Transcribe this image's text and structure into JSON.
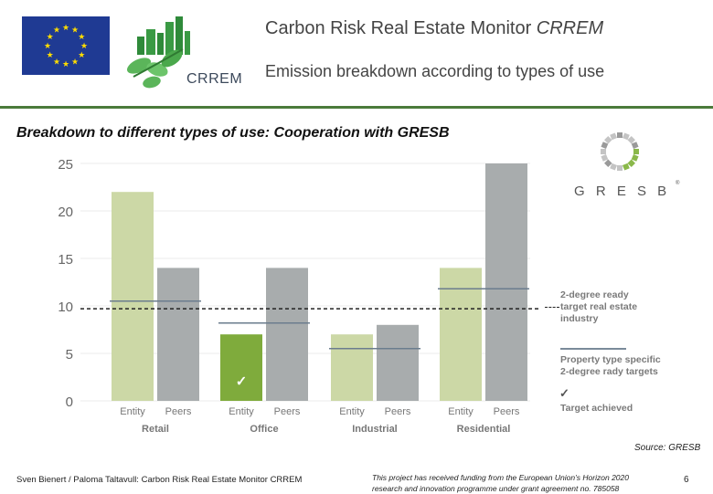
{
  "header": {
    "title_main": "Carbon Risk Real Estate Monitor ",
    "title_italic": "CRREM",
    "subtitle": "Emission breakdown according to types of use",
    "logo_text": "CRREM"
  },
  "slide_title": "Breakdown to different types of use: Cooperation with GRESB",
  "gresb": {
    "logo_text": "G R E S B",
    "mark": "®"
  },
  "chart_data": {
    "type": "bar",
    "title": "",
    "xlabel": "",
    "ylabel": "",
    "ylim": [
      0,
      25
    ],
    "yticks": [
      0,
      5,
      10,
      15,
      20,
      25
    ],
    "grid": true,
    "legend_placement": "right",
    "groups": [
      {
        "name": "Retail",
        "bars": [
          {
            "label": "Entity",
            "value": 22,
            "kind": "entity"
          },
          {
            "label": "Peers",
            "value": 14,
            "kind": "peers"
          }
        ],
        "target": 10.5,
        "achieved": false
      },
      {
        "name": "Office",
        "bars": [
          {
            "label": "Entity",
            "value": 7,
            "kind": "entity"
          },
          {
            "label": "Peers",
            "value": 14,
            "kind": "peers"
          }
        ],
        "target": 8.2,
        "achieved": true
      },
      {
        "name": "Industrial",
        "bars": [
          {
            "label": "Entity",
            "value": 7,
            "kind": "entity"
          },
          {
            "label": "Peers",
            "value": 8,
            "kind": "peers"
          }
        ],
        "target": 5.5,
        "achieved": false
      },
      {
        "name": "Residential",
        "bars": [
          {
            "label": "Entity",
            "value": 14,
            "kind": "entity"
          },
          {
            "label": "Peers",
            "value": 25,
            "kind": "peers"
          }
        ],
        "target": 11.8,
        "achieved": false
      }
    ],
    "overall_target": 9.7,
    "colors": {
      "entity": "#ccd8a6",
      "entity_achieved": "#7fab3c",
      "peers": "#a8acad",
      "target_line": "#6b7d8e",
      "dashed": "#222222"
    }
  },
  "legend": {
    "dashed_label": "2-degree ready\ntarget real estate\nindustry",
    "line_label": "Property type specific\n2-degree rady targets",
    "check_label": "Target achieved",
    "check_glyph": "✓"
  },
  "source": "Source: GRESB",
  "footer": {
    "left": "Sven Bienert / Paloma Taltavull: Carbon Risk Real Estate Monitor CRREM",
    "middle": "This project has received funding from the European Union’s Horizon 2020\nresearch and innovation programme under grant agreement no. 785058",
    "page": "6"
  }
}
